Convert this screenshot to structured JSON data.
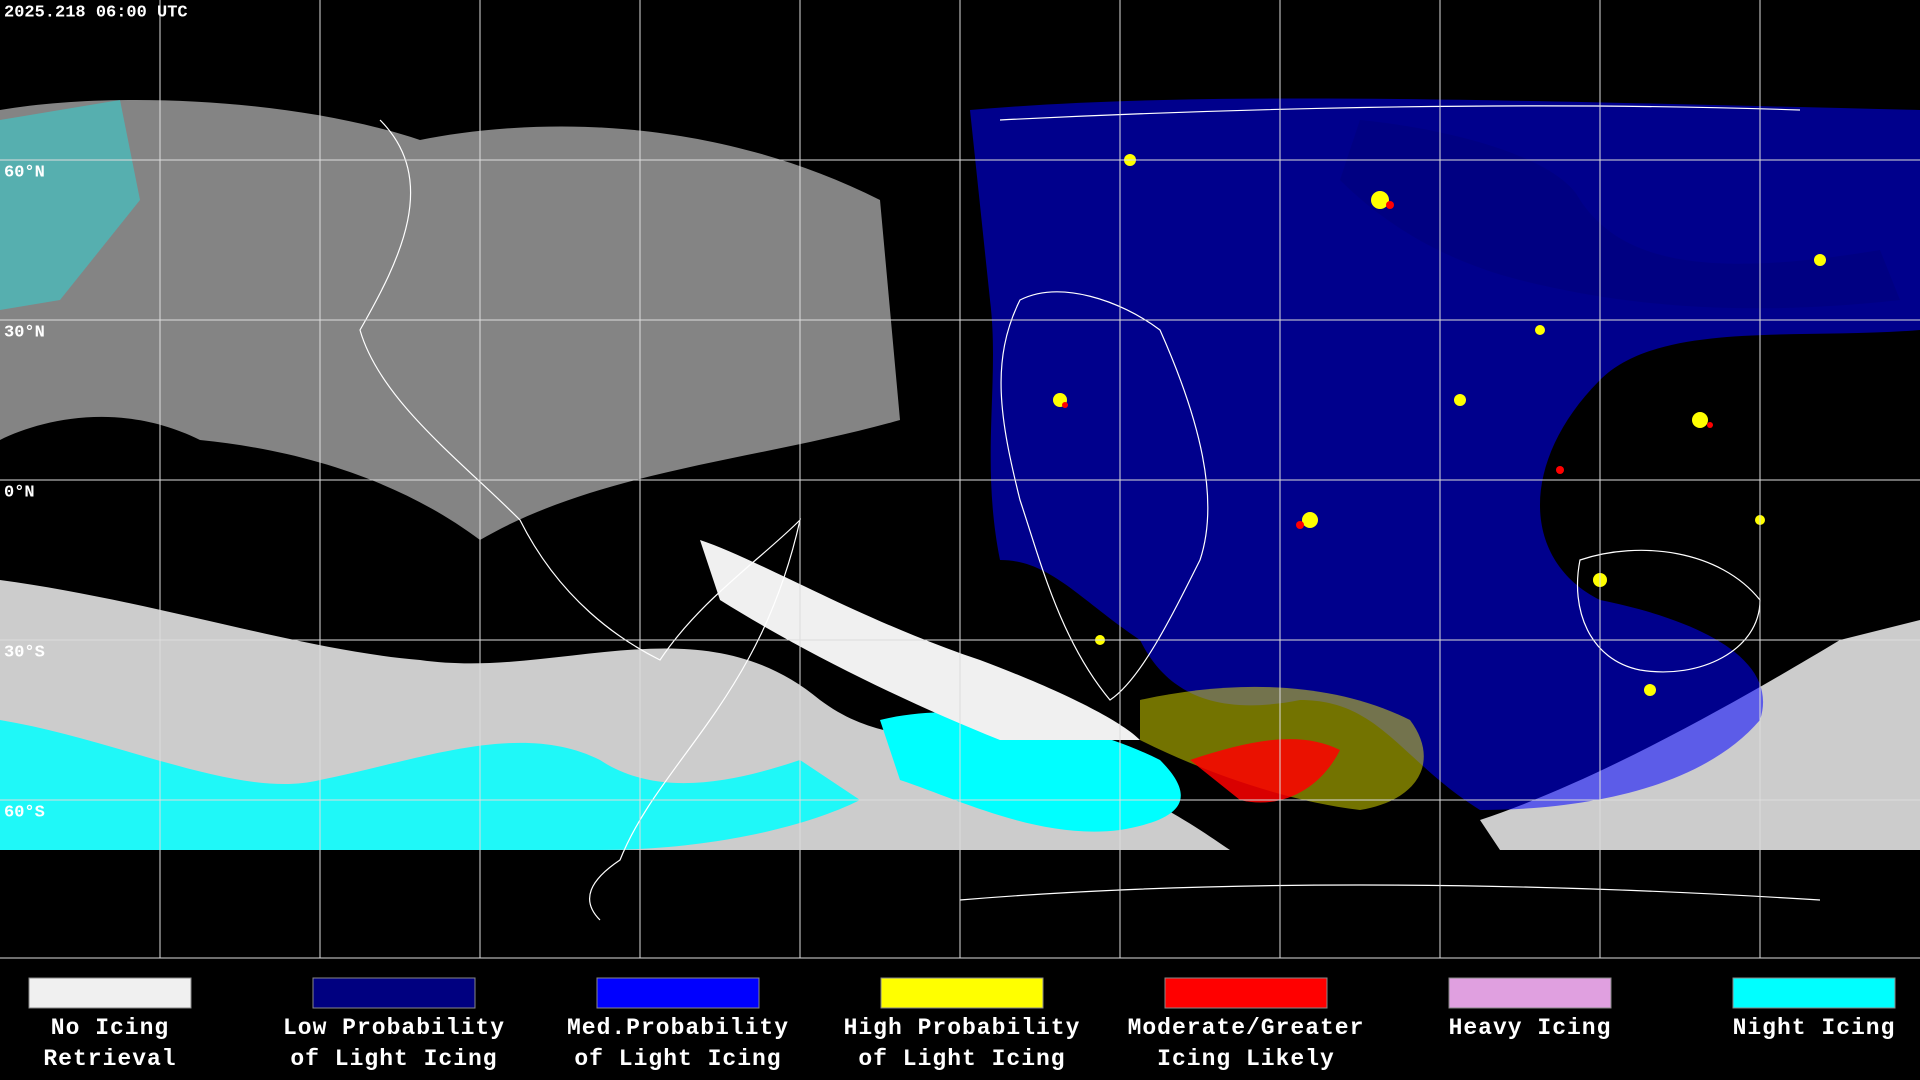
{
  "timestamp": "2025.218 06:00 UTC",
  "latitude_labels": [
    "60°N",
    "30°N",
    "0°N",
    "30°S",
    "60°S"
  ],
  "legend": [
    {
      "color": "#f0f0f0",
      "label": [
        "No Icing",
        "Retrieval"
      ]
    },
    {
      "color": "#000080",
      "label": [
        "Low Probability",
        "of Light Icing"
      ]
    },
    {
      "color": "#0000ff",
      "label": [
        "Med.Probability",
        "of Light Icing"
      ]
    },
    {
      "color": "#ffff00",
      "label": [
        "High Probability",
        "of Light Icing"
      ]
    },
    {
      "color": "#ff0000",
      "label": [
        "Moderate/Greater",
        "Icing Likely"
      ]
    },
    {
      "color": "#e0a0e0",
      "label": [
        "Heavy Icing"
      ]
    },
    {
      "color": "#00ffff",
      "label": [
        "Night Icing"
      ]
    }
  ]
}
